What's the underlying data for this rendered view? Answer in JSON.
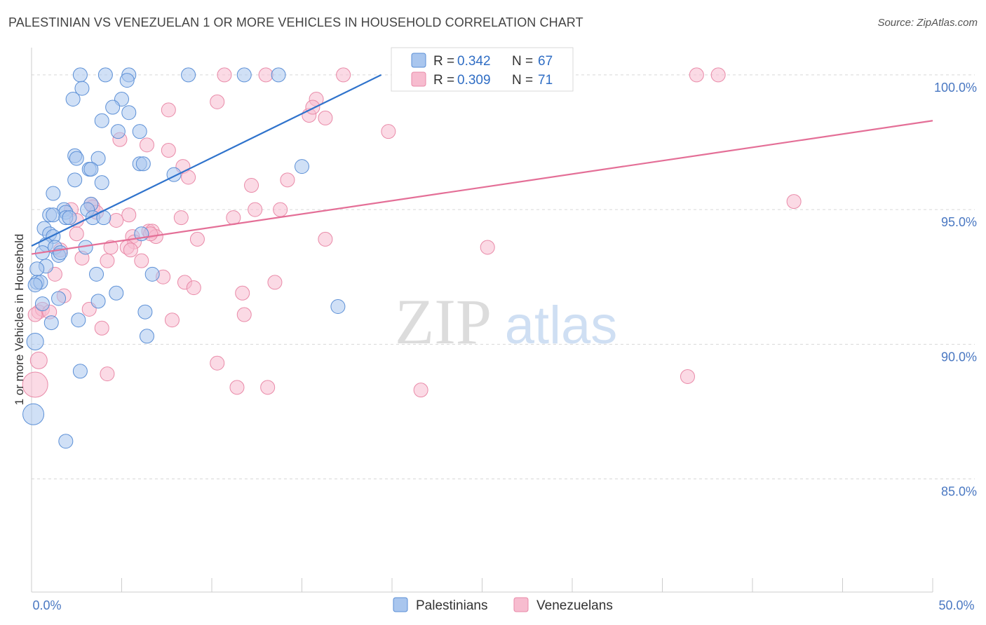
{
  "title": "PALESTINIAN VS VENEZUELAN 1 OR MORE VEHICLES IN HOUSEHOLD CORRELATION CHART",
  "source": "Source: ZipAtlas.com",
  "watermark": {
    "zip": "ZIP",
    "atlas": "atlas"
  },
  "colors": {
    "blue_fill": "#a9c6ee",
    "blue_stroke": "#5b8fd6",
    "blue_line": "#2f73cc",
    "pink_fill": "#f7bccf",
    "pink_stroke": "#e98aa8",
    "pink_line": "#e46f97",
    "axis_text": "#4a78c2",
    "grid": "#d8d8d8"
  },
  "legend": {
    "r_label": "R =",
    "n_label": "N =",
    "blue": {
      "r": "0.342",
      "n": "67"
    },
    "pink": {
      "r": "0.309",
      "n": "71"
    }
  },
  "chart_data": {
    "type": "scatter",
    "title": "PALESTINIAN VS VENEZUELAN 1 OR MORE VEHICLES IN HOUSEHOLD CORRELATION CHART",
    "xlabel": "",
    "ylabel": "1 or more Vehicles in Household",
    "xlim": [
      0,
      50
    ],
    "ylim": [
      80.8,
      100.7
    ],
    "x_tick_labels": [
      "0.0%",
      "50.0%"
    ],
    "y_ticks": [
      85,
      90,
      95,
      100
    ],
    "y_tick_labels": [
      "85.0%",
      "90.0%",
      "95.0%",
      "100.0%"
    ],
    "series": [
      {
        "name": "Palestinians",
        "color": "#a9c6ee",
        "r": 0.342,
        "n": 67,
        "trend": {
          "x0": 0,
          "y0": 93.65,
          "x1": 19.4,
          "y1": 100.0
        },
        "points": [
          [
            2.7,
            100
          ],
          [
            4.1,
            100
          ],
          [
            5.4,
            100
          ],
          [
            8.7,
            100
          ],
          [
            11.8,
            100
          ],
          [
            13.7,
            100
          ],
          [
            5.3,
            99.8
          ],
          [
            2.8,
            99.5
          ],
          [
            2.3,
            99.1
          ],
          [
            5.0,
            99.1
          ],
          [
            4.5,
            98.8
          ],
          [
            5.4,
            98.6
          ],
          [
            3.9,
            98.3
          ],
          [
            4.8,
            97.9
          ],
          [
            6.0,
            97.9
          ],
          [
            2.4,
            97.0
          ],
          [
            2.5,
            96.9
          ],
          [
            3.7,
            96.9
          ],
          [
            6.0,
            96.7
          ],
          [
            6.2,
            96.7
          ],
          [
            3.2,
            96.5
          ],
          [
            3.3,
            96.5
          ],
          [
            15.0,
            96.6
          ],
          [
            7.9,
            96.3
          ],
          [
            2.4,
            96.1
          ],
          [
            3.9,
            96.0
          ],
          [
            1.2,
            95.6
          ],
          [
            3.3,
            95.2
          ],
          [
            1.8,
            95.0
          ],
          [
            3.1,
            95.0
          ],
          [
            1.9,
            94.9
          ],
          [
            1.0,
            94.8
          ],
          [
            1.2,
            94.8
          ],
          [
            1.9,
            94.7
          ],
          [
            2.1,
            94.7
          ],
          [
            3.4,
            94.7
          ],
          [
            4.0,
            94.7
          ],
          [
            0.7,
            94.3
          ],
          [
            1.0,
            94.1
          ],
          [
            1.2,
            94.0
          ],
          [
            6.1,
            94.1
          ],
          [
            0.8,
            93.7
          ],
          [
            3.0,
            93.6
          ],
          [
            1.3,
            93.6
          ],
          [
            0.6,
            93.4
          ],
          [
            1.5,
            93.3
          ],
          [
            1.6,
            93.4
          ],
          [
            0.8,
            92.9
          ],
          [
            0.3,
            92.8
          ],
          [
            3.6,
            92.6
          ],
          [
            6.7,
            92.6
          ],
          [
            0.3,
            92.3
          ],
          [
            0.5,
            92.3
          ],
          [
            4.7,
            91.9
          ],
          [
            1.5,
            91.7
          ],
          [
            3.7,
            91.6
          ],
          [
            0.6,
            91.5
          ],
          [
            17.0,
            91.4
          ],
          [
            6.3,
            91.2
          ],
          [
            1.1,
            90.8
          ],
          [
            2.6,
            90.9
          ],
          [
            6.4,
            90.3
          ],
          [
            0.2,
            90.1
          ],
          [
            2.7,
            89.0
          ],
          [
            0.1,
            87.4
          ],
          [
            1.9,
            86.4
          ],
          [
            0.2,
            92.2
          ]
        ],
        "sizes": [
          10,
          10,
          10,
          10,
          10,
          10,
          10,
          10,
          10,
          10,
          10,
          10,
          10,
          10,
          10,
          10,
          10,
          10,
          10,
          10,
          10,
          10,
          10,
          10,
          10,
          10,
          10,
          10,
          10,
          10,
          10,
          10,
          10,
          10,
          10,
          10,
          10,
          10,
          10,
          10,
          10,
          10,
          10,
          10,
          10,
          10,
          10,
          10,
          10,
          10,
          10,
          10,
          10,
          10,
          10,
          10,
          10,
          10,
          10,
          10,
          10,
          10,
          12,
          10,
          15,
          10,
          10
        ]
      },
      {
        "name": "Venezuelans",
        "color": "#f7bccf",
        "r": 0.309,
        "n": 71,
        "trend": {
          "x0": 0,
          "y0": 93.35,
          "x1": 50,
          "y1": 98.3
        },
        "points": [
          [
            10.7,
            100
          ],
          [
            13.0,
            100
          ],
          [
            17.3,
            100
          ],
          [
            36.9,
            100
          ],
          [
            38.1,
            100
          ],
          [
            15.8,
            99.1
          ],
          [
            10.3,
            99.0
          ],
          [
            7.6,
            98.7
          ],
          [
            15.4,
            98.5
          ],
          [
            16.3,
            98.4
          ],
          [
            19.8,
            97.9
          ],
          [
            4.9,
            97.6
          ],
          [
            6.4,
            97.4
          ],
          [
            7.6,
            97.2
          ],
          [
            8.4,
            96.6
          ],
          [
            8.7,
            96.2
          ],
          [
            14.2,
            96.1
          ],
          [
            12.2,
            95.9
          ],
          [
            3.3,
            95.2
          ],
          [
            3.4,
            95.1
          ],
          [
            2.2,
            95.0
          ],
          [
            12.4,
            95.0
          ],
          [
            13.8,
            95.0
          ],
          [
            3.6,
            94.9
          ],
          [
            5.4,
            94.8
          ],
          [
            11.2,
            94.7
          ],
          [
            8.3,
            94.7
          ],
          [
            42.3,
            95.3
          ],
          [
            2.5,
            94.6
          ],
          [
            4.7,
            94.6
          ],
          [
            2.5,
            94.1
          ],
          [
            6.5,
            94.2
          ],
          [
            6.7,
            94.2
          ],
          [
            5.6,
            94.0
          ],
          [
            6.9,
            94.0
          ],
          [
            5.7,
            93.8
          ],
          [
            9.2,
            93.9
          ],
          [
            16.3,
            93.9
          ],
          [
            4.4,
            93.6
          ],
          [
            5.3,
            93.6
          ],
          [
            5.5,
            93.5
          ],
          [
            25.3,
            93.6
          ],
          [
            1.6,
            93.5
          ],
          [
            2.8,
            93.2
          ],
          [
            6.1,
            93.1
          ],
          [
            4.2,
            93.1
          ],
          [
            1.3,
            92.6
          ],
          [
            7.3,
            92.5
          ],
          [
            8.5,
            92.3
          ],
          [
            9.0,
            92.1
          ],
          [
            13.5,
            92.3
          ],
          [
            11.7,
            91.9
          ],
          [
            1.8,
            91.8
          ],
          [
            0.4,
            91.2
          ],
          [
            0.6,
            91.3
          ],
          [
            1.0,
            91.2
          ],
          [
            3.2,
            91.3
          ],
          [
            11.8,
            91.1
          ],
          [
            7.8,
            90.9
          ],
          [
            3.9,
            90.6
          ],
          [
            0.4,
            89.4
          ],
          [
            10.3,
            89.3
          ],
          [
            4.2,
            88.9
          ],
          [
            36.4,
            88.8
          ],
          [
            13.1,
            88.4
          ],
          [
            21.6,
            88.3
          ],
          [
            0.2,
            88.5
          ],
          [
            11.4,
            88.4
          ],
          [
            0.2,
            91.1
          ],
          [
            15.6,
            98.8
          ],
          [
            6.6,
            94.1
          ]
        ],
        "sizes": [
          10,
          10,
          10,
          10,
          10,
          10,
          10,
          10,
          10,
          10,
          10,
          10,
          10,
          10,
          10,
          10,
          10,
          10,
          10,
          10,
          10,
          10,
          10,
          10,
          10,
          10,
          10,
          10,
          10,
          10,
          10,
          10,
          10,
          10,
          10,
          10,
          10,
          10,
          10,
          10,
          10,
          10,
          10,
          10,
          10,
          10,
          10,
          10,
          10,
          10,
          10,
          10,
          10,
          10,
          10,
          10,
          10,
          10,
          10,
          10,
          12,
          10,
          10,
          10,
          10,
          10,
          18,
          0,
          0,
          0,
          0
        ]
      }
    ]
  }
}
